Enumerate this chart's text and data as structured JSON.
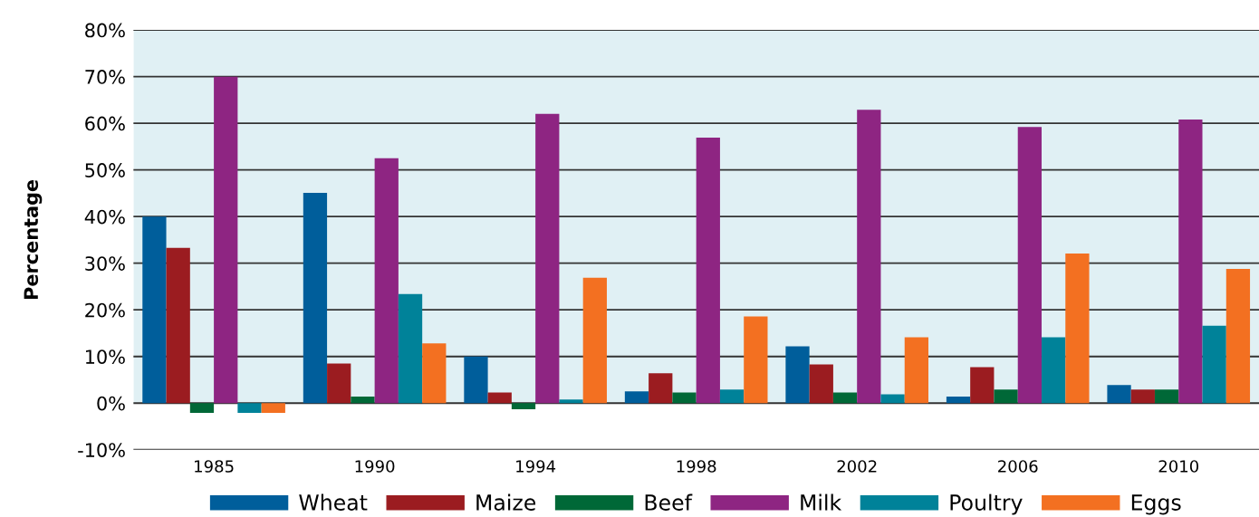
{
  "chart_data": {
    "type": "bar",
    "ylabel": "Percentage",
    "categories": [
      "1985",
      "1990",
      "1994",
      "1998",
      "2002",
      "2006",
      "2010"
    ],
    "series": [
      {
        "name": "Wheat",
        "color": "#005e9b",
        "values": [
          40,
          45.1,
          10,
          2.5,
          12.2,
          1.4,
          3.9
        ]
      },
      {
        "name": "Maize",
        "color": "#9b1c20",
        "values": [
          33.3,
          8.5,
          2.3,
          6.4,
          8.3,
          7.7,
          2.9
        ]
      },
      {
        "name": "Beef",
        "color": "#006837",
        "values": [
          -2.1,
          1.4,
          -1.3,
          2.3,
          2.3,
          2.9,
          2.9
        ]
      },
      {
        "name": "Milk",
        "color": "#8e2582",
        "values": [
          70,
          52.5,
          62,
          56.9,
          62.9,
          59.2,
          60.8
        ]
      },
      {
        "name": "Poultry",
        "color": "#008299",
        "values": [
          -2.1,
          23.4,
          0.8,
          2.9,
          1.9,
          14.1,
          16.6
        ]
      },
      {
        "name": "Eggs",
        "color": "#f37021",
        "values": [
          -2.1,
          12.8,
          26.9,
          18.6,
          14.1,
          32.1,
          28.8
        ]
      }
    ],
    "ylim": [
      -10,
      80
    ],
    "yticks": [
      {
        "value": -10,
        "label": "-10%"
      },
      {
        "value": 0,
        "label": "0%"
      },
      {
        "value": 10,
        "label": "10%"
      },
      {
        "value": 20,
        "label": "20%"
      },
      {
        "value": 30,
        "label": "30%"
      },
      {
        "value": 40,
        "label": "40%"
      },
      {
        "value": 50,
        "label": "50%"
      },
      {
        "value": 60,
        "label": "60%"
      },
      {
        "value": 70,
        "label": "70%"
      },
      {
        "value": 80,
        "label": "80%"
      }
    ],
    "bands": [
      {
        "axis": "y",
        "from": 0,
        "to": 80,
        "color": "#e0f0f4"
      }
    ],
    "grid": "y",
    "legend": "bottom"
  }
}
